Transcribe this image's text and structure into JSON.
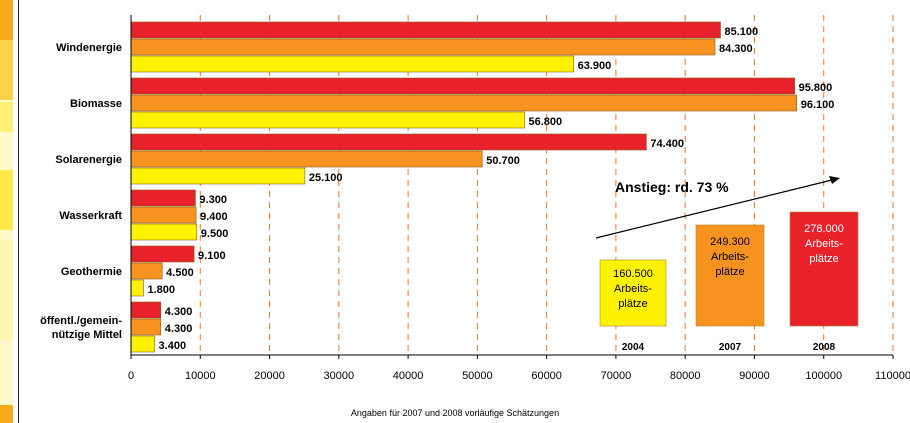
{
  "chart_data": {
    "type": "bar",
    "orientation": "horizontal",
    "categories": [
      "Windenergie",
      "Biomasse",
      "Solarenergie",
      "Wasserkraft",
      "Geothermie",
      "öffentl./gemein-\nnützige Mittel"
    ],
    "series": [
      {
        "year": "2008",
        "color": "#e8212b",
        "values": [
          85100,
          95800,
          74400,
          9300,
          9100,
          4300
        ],
        "labels": [
          "85.100",
          "95.800",
          "74.400",
          "9.300",
          "9.100",
          "4.300"
        ]
      },
      {
        "year": "2007",
        "color": "#f7931e",
        "values": [
          84300,
          96100,
          50700,
          9400,
          4500,
          4300
        ],
        "labels": [
          "84.300",
          "96.100",
          "50.700",
          "9.400",
          "4.500",
          "4.300"
        ]
      },
      {
        "year": "2004",
        "color": "#fff200",
        "values": [
          63900,
          56800,
          25100,
          9500,
          1800,
          3400
        ],
        "labels": [
          "63.900",
          "56.800",
          "25.100",
          "9.500",
          "1.800",
          "3.400"
        ]
      }
    ],
    "xlim": [
      0,
      110000
    ],
    "xticks": [
      "0",
      "10000",
      "20000",
      "30000",
      "40000",
      "50000",
      "60000",
      "70000",
      "80000",
      "90000",
      "100000",
      "110000"
    ],
    "grid": "vertical dashed",
    "annotation": "Anstieg: rd. 73 %",
    "totals": [
      {
        "year": "2004",
        "lines": [
          "160.500",
          "Arbeits-",
          "plätze"
        ],
        "value": 160500,
        "color": "#fff200"
      },
      {
        "year": "2007",
        "lines": [
          "249.300",
          "Arbeits-",
          "plätze"
        ],
        "value": 249300,
        "color": "#f7931e"
      },
      {
        "year": "2008",
        "lines": [
          "278.000",
          "Arbeits-",
          "plätze"
        ],
        "value": 278000,
        "color": "#e8212b"
      }
    ],
    "footnote": "Angaben für 2007 und 2008 vorläufige Schätzungen"
  }
}
